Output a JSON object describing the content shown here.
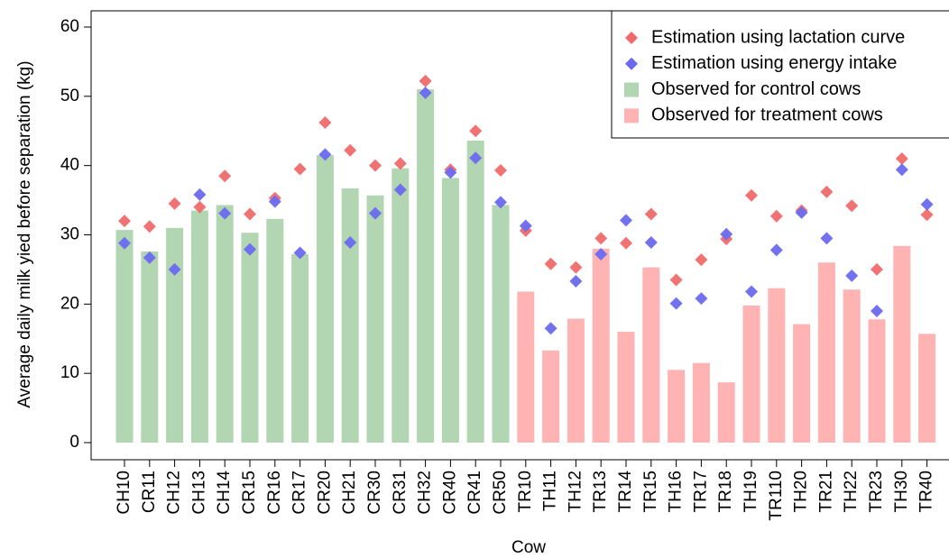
{
  "chart_data": {
    "type": "bar",
    "y_label": "Average daily milk yied before separation (kg)",
    "x_label": "Cow",
    "categories": [
      "CH10",
      "CR11",
      "CH12",
      "CH13",
      "CH14",
      "CR15",
      "CR16",
      "CR17",
      "CR20",
      "CH21",
      "CR30",
      "CR31",
      "CH32",
      "CR40",
      "CR41",
      "CR50",
      "TR10",
      "TH11",
      "TH12",
      "TR13",
      "TR14",
      "TR15",
      "TH16",
      "TR17",
      "TR18",
      "TH19",
      "TR110",
      "TH20",
      "TR21",
      "TH22",
      "TR23",
      "TH30",
      "TR40"
    ],
    "ylim": [
      0,
      60
    ],
    "yticks": [
      0,
      10,
      20,
      30,
      40,
      50,
      60
    ],
    "legend": "top-right",
    "series": [
      {
        "name": "Observed for control cows",
        "type": "bar",
        "color": "#b2d5b2",
        "values": [
          30.7,
          27.6,
          31,
          33.5,
          34.3,
          30.3,
          32.3,
          27.2,
          41.5,
          36.7,
          35.7,
          39.6,
          51,
          38.2,
          43.6,
          34.3,
          null,
          null,
          null,
          null,
          null,
          null,
          null,
          null,
          null,
          null,
          null,
          null,
          null,
          null,
          null,
          null,
          null
        ]
      },
      {
        "name": "Observed for treatment cows",
        "type": "bar",
        "color": "#ffb3b3",
        "values": [
          null,
          null,
          null,
          null,
          null,
          null,
          null,
          null,
          null,
          null,
          null,
          null,
          null,
          null,
          null,
          null,
          21.8,
          13.3,
          17.9,
          28,
          16,
          25.3,
          10.5,
          11.5,
          8.7,
          19.8,
          22.3,
          17.1,
          26,
          22.1,
          17.8,
          28.4,
          15.7
        ]
      },
      {
        "name": "Estimation using lactation curve",
        "type": "scatter",
        "color": "#f06a6a",
        "values": [
          32,
          31.2,
          34.5,
          34,
          38.5,
          33,
          35.3,
          39.5,
          46.2,
          42.2,
          40,
          40.3,
          52.2,
          39.4,
          45,
          39.3,
          30.6,
          25.8,
          25.3,
          29.5,
          28.8,
          33,
          23.5,
          26.4,
          29.4,
          35.7,
          32.7,
          33.5,
          36.2,
          34.2,
          25,
          41,
          32.9
        ]
      },
      {
        "name": "Estimation using energy intake",
        "type": "scatter",
        "color": "#6a6af0",
        "values": [
          28.8,
          26.7,
          25,
          35.8,
          33.1,
          27.9,
          34.8,
          27.4,
          41.6,
          28.9,
          33.1,
          36.5,
          50.5,
          39,
          41.1,
          34.7,
          31.3,
          16.5,
          23.3,
          27.2,
          32.1,
          28.9,
          20.1,
          20.8,
          30.1,
          21.8,
          27.8,
          33.2,
          29.5,
          24.1,
          19,
          39.4,
          34.4
        ]
      }
    ]
  }
}
